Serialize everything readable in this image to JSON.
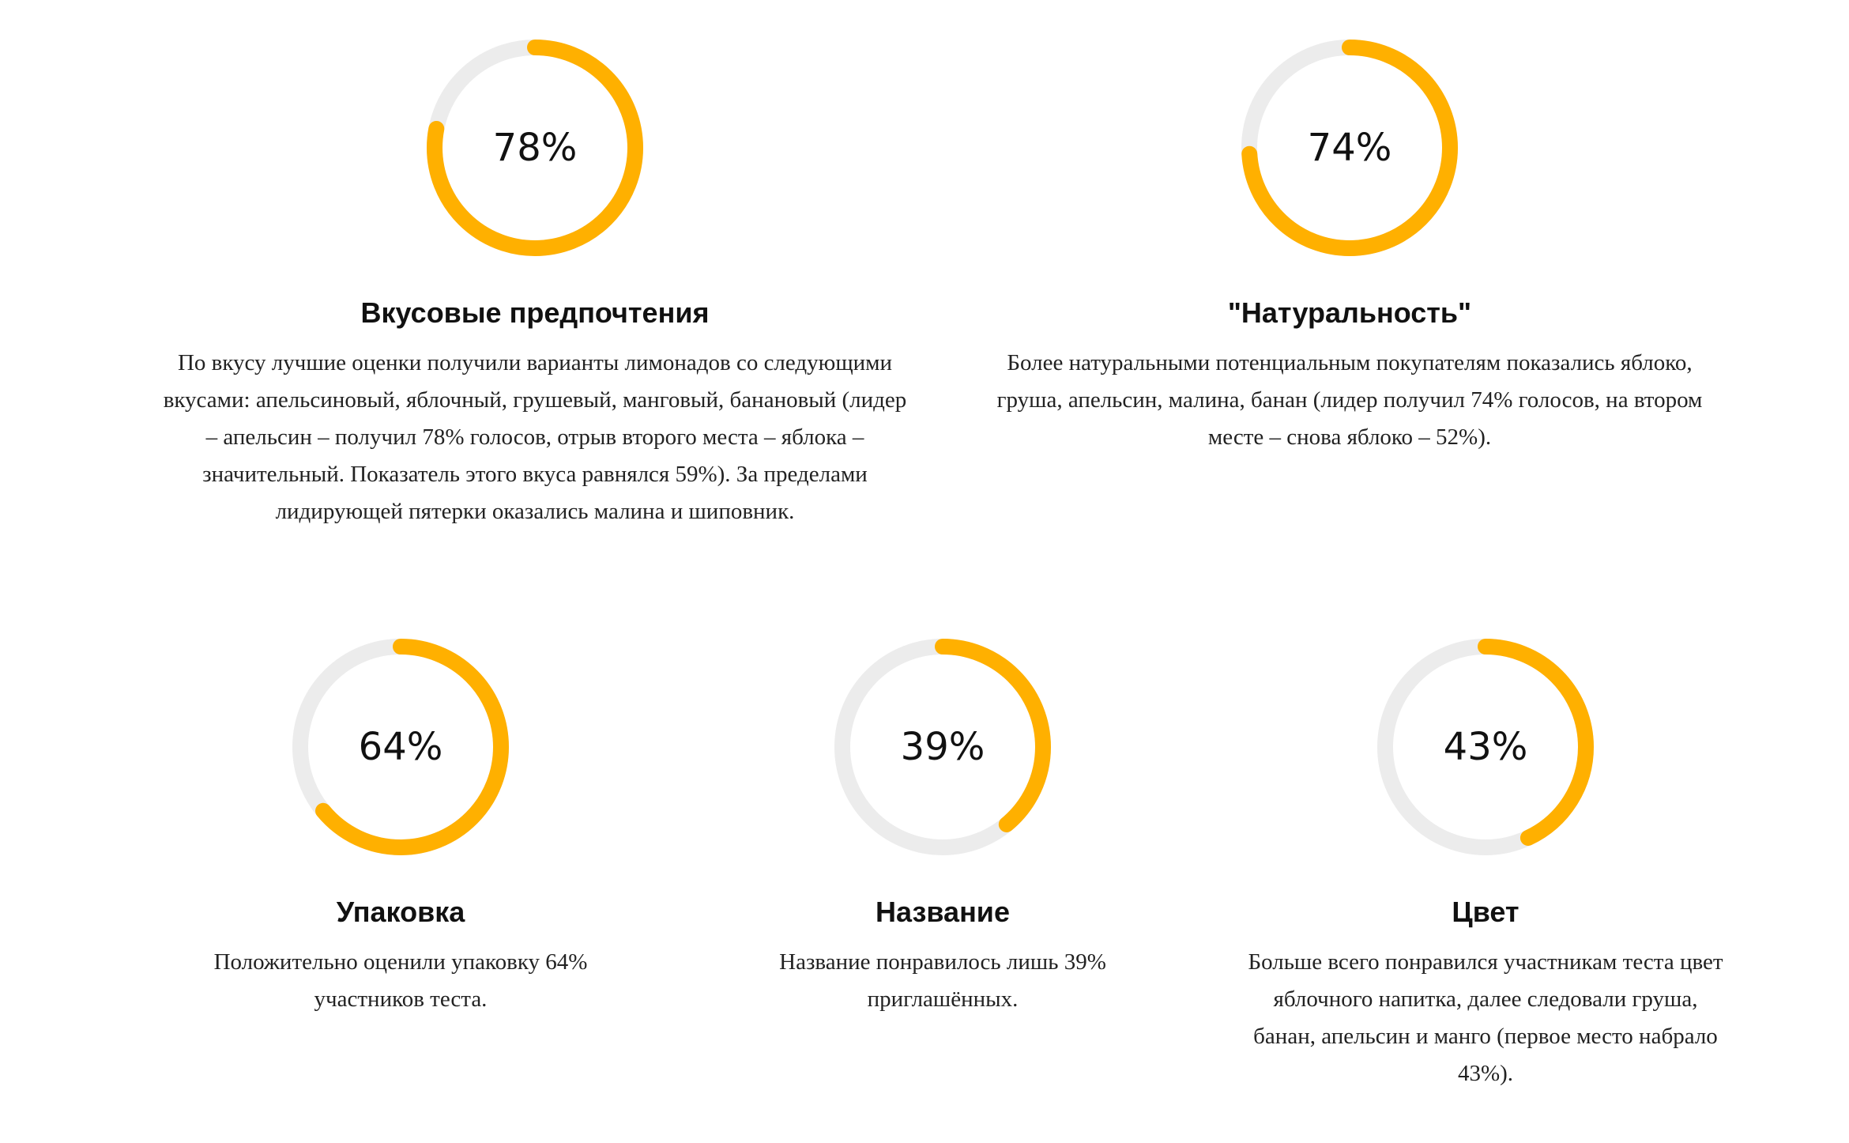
{
  "items": [
    {
      "value": 78,
      "value_label": "78%",
      "title": "Вкусовые предпочтения",
      "text": "По вкусу лучшие оценки получили варианты лимонадов со следующими вкусами: апельсиновый, яблочный, грушевый, манговый, банановый (лидер – апельсин – получил 78% голосов, отрыв второго места – яблока – значительный. Показатель этого вкуса равнялся 59%). За пределами лидирующей пятерки оказались малина и шиповник."
    },
    {
      "value": 74,
      "value_label": "74%",
      "title": "\"Натуральность\"",
      "text": "Более натуральными потенциальным покупателям показались яблоко, груша, апельсин, малина, банан (лидер получил 74% голосов, на втором месте – снова яблоко – 52%)."
    },
    {
      "value": 64,
      "value_label": "64%",
      "title": "Упаковка",
      "text": "Положительно оценили упаковку 64% участников теста."
    },
    {
      "value": 39,
      "value_label": "39%",
      "title": "Название",
      "text": "Название понравилось лишь 39% приглашённых."
    },
    {
      "value": 43,
      "value_label": "43%",
      "title": "Цвет",
      "text": "Больше всего понравился участникам теста цвет яблочного напитка, далее следовали груша, банан, апельсин и манго (первое место набрало 43%)."
    }
  ]
}
